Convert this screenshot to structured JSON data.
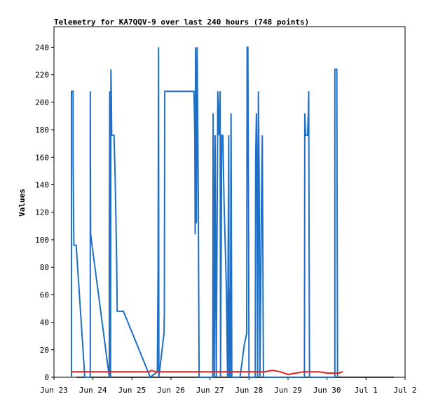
{
  "chart_data": {
    "type": "line",
    "title": "Telemetry for KA7QQV-9 over last 240 hours (748 points)",
    "xlabel": "",
    "ylabel": "Values",
    "xlim": [
      "Jun 23 00:00",
      "Jul 2 00:00"
    ],
    "ylim": [
      0,
      255
    ],
    "grid": false,
    "legend": "none",
    "x_tick_labels": [
      "Jun 23",
      "Jun 24",
      "Jun 25",
      "Jun 26",
      "Jun 27",
      "Jun 28",
      "Jun 29",
      "Jun 30",
      "Jul 1",
      "Jul 2"
    ],
    "y_ticks": [
      0,
      20,
      40,
      60,
      80,
      100,
      120,
      140,
      160,
      180,
      200,
      220,
      240
    ],
    "colors": {
      "series_blue": "#1f6fc5",
      "series_red": "#e02020",
      "axis": "#000000"
    },
    "series": [
      {
        "color": "#1f6fc5",
        "points": [
          [
            0.45,
            0
          ],
          [
            0.45,
            208
          ],
          [
            0.49,
            208
          ],
          [
            0.49,
            160
          ],
          [
            0.51,
            96
          ],
          [
            0.57,
            96
          ],
          [
            0.79,
            0
          ],
          [
            0.93,
            0
          ],
          [
            0.93,
            208
          ],
          [
            0.94,
            104
          ],
          [
            1.42,
            0
          ],
          [
            1.42,
            104
          ],
          [
            1.43,
            208
          ],
          [
            1.45,
            0
          ],
          [
            1.46,
            224
          ],
          [
            1.47,
            208
          ],
          [
            1.48,
            176
          ],
          [
            1.54,
            176
          ],
          [
            1.57,
            144
          ],
          [
            1.61,
            80
          ],
          [
            1.62,
            48
          ],
          [
            1.78,
            48
          ],
          [
            2.47,
            0
          ],
          [
            2.65,
            4
          ],
          [
            2.67,
            80
          ],
          [
            2.68,
            240
          ],
          [
            2.69,
            0
          ],
          [
            2.82,
            32
          ],
          [
            2.83,
            48
          ],
          [
            2.84,
            208
          ],
          [
            3.59,
            208
          ],
          [
            3.61,
            176
          ],
          [
            3.62,
            104
          ],
          [
            3.63,
            240
          ],
          [
            3.65,
            112
          ],
          [
            3.67,
            240
          ],
          [
            3.7,
            128
          ],
          [
            3.71,
            64
          ],
          [
            3.72,
            0
          ],
          [
            4.07,
            0
          ],
          [
            4.08,
            192
          ],
          [
            4.1,
            96
          ],
          [
            4.11,
            0
          ],
          [
            4.13,
            176
          ],
          [
            4.16,
            0
          ],
          [
            4.2,
            208
          ],
          [
            4.23,
            176
          ],
          [
            4.26,
            208
          ],
          [
            4.27,
            0
          ],
          [
            4.3,
            176
          ],
          [
            4.33,
            176
          ],
          [
            4.36,
            128
          ],
          [
            4.39,
            96
          ],
          [
            4.42,
            64
          ],
          [
            4.45,
            0
          ],
          [
            4.48,
            176
          ],
          [
            4.49,
            0
          ],
          [
            4.51,
            64
          ],
          [
            4.52,
            0
          ],
          [
            4.54,
            192
          ],
          [
            4.56,
            0
          ],
          [
            4.77,
            0
          ],
          [
            4.88,
            24
          ],
          [
            4.94,
            32
          ],
          [
            4.95,
            240
          ],
          [
            4.97,
            240
          ],
          [
            4.99,
            96
          ],
          [
            5.0,
            0
          ],
          [
            5.16,
            0
          ],
          [
            5.17,
            160
          ],
          [
            5.19,
            192
          ],
          [
            5.2,
            160
          ],
          [
            5.22,
            0
          ],
          [
            5.24,
            208
          ],
          [
            5.26,
            144
          ],
          [
            5.28,
            0
          ],
          [
            5.32,
            128
          ],
          [
            5.34,
            176
          ],
          [
            5.37,
            0
          ],
          [
            6.42,
            0
          ],
          [
            6.43,
            192
          ],
          [
            6.45,
            176
          ],
          [
            6.5,
            176
          ],
          [
            6.52,
            192
          ],
          [
            6.53,
            208
          ],
          [
            6.55,
            0
          ],
          [
            7.2,
            0
          ],
          [
            7.2,
            224
          ],
          [
            7.25,
            224
          ],
          [
            7.26,
            112
          ],
          [
            7.27,
            0
          ]
        ]
      },
      {
        "color": "#e02020",
        "points": [
          [
            0.45,
            4
          ],
          [
            2.45,
            4
          ],
          [
            2.5,
            5
          ],
          [
            2.6,
            4
          ],
          [
            5.4,
            4
          ],
          [
            5.6,
            5
          ],
          [
            5.8,
            4
          ],
          [
            5.9,
            3
          ],
          [
            6.0,
            2
          ],
          [
            6.2,
            3
          ],
          [
            6.4,
            4
          ],
          [
            6.8,
            4
          ],
          [
            7.0,
            3
          ],
          [
            7.3,
            3
          ],
          [
            7.4,
            4
          ]
        ]
      }
    ]
  }
}
